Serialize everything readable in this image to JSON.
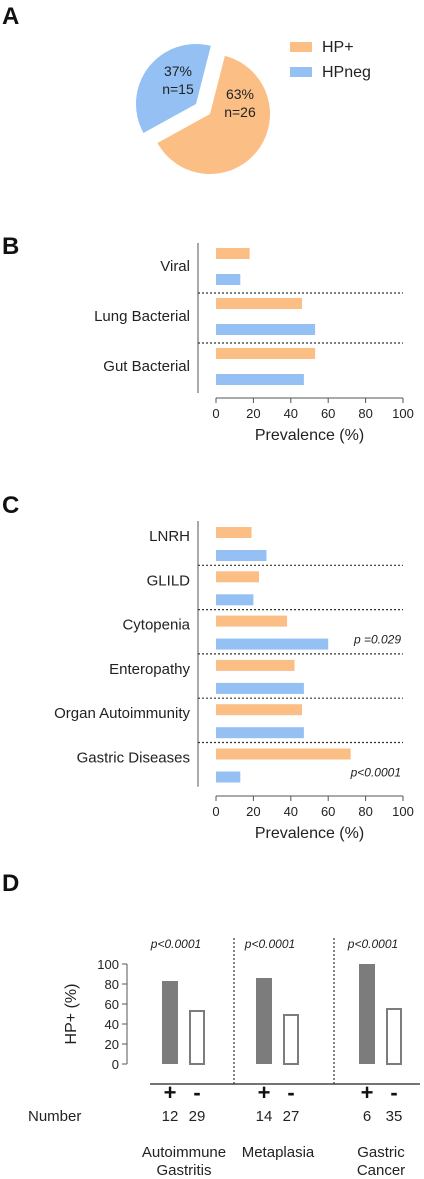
{
  "colors": {
    "hp_pos": "#fbbf86",
    "hp_neg": "#94c0f3",
    "bar_dark": "#7c7c7c",
    "axis": "#555555",
    "text": "#222222"
  },
  "chart_data": [
    {
      "panel": "A",
      "type": "pie",
      "categories": [
        "HP+",
        "HPneg"
      ],
      "values": [
        63,
        37
      ],
      "slice_labels": [
        {
          "percent": "63%",
          "n": "n=26"
        },
        {
          "percent": "37%",
          "n": "n=15"
        }
      ],
      "legend": [
        {
          "name": "HP+",
          "color": "#fbbf86"
        },
        {
          "name": "HPneg",
          "color": "#94c0f3"
        }
      ],
      "legend_position": "right"
    },
    {
      "panel": "B",
      "type": "bar",
      "orientation": "horizontal",
      "categories": [
        "Viral",
        "Lung Bacterial",
        "Gut Bacterial"
      ],
      "series": [
        {
          "name": "HP+",
          "values": [
            18,
            46,
            53
          ]
        },
        {
          "name": "HPneg",
          "values": [
            13,
            53,
            47
          ]
        }
      ],
      "xlabel": "Prevalence (%)",
      "xlim": [
        0,
        100
      ],
      "xticks": [
        "0",
        "20",
        "40",
        "60",
        "80",
        "100"
      ],
      "annotations": []
    },
    {
      "panel": "C",
      "type": "bar",
      "orientation": "horizontal",
      "categories": [
        "LNRH",
        "GLILD",
        "Cytopenia",
        "Enteropathy",
        "Organ Autoimmunity",
        "Gastric Diseases"
      ],
      "series": [
        {
          "name": "HP+",
          "values": [
            19,
            23,
            38,
            42,
            46,
            72
          ]
        },
        {
          "name": "HPneg",
          "values": [
            27,
            20,
            60,
            47,
            47,
            13
          ]
        }
      ],
      "xlabel": "Prevalence (%)",
      "xlim": [
        0,
        100
      ],
      "xticks": [
        "0",
        "20",
        "40",
        "60",
        "80",
        "100"
      ],
      "annotations": [
        {
          "category": "Cytopenia",
          "text": "p =0.029"
        },
        {
          "category": "Gastric Diseases",
          "text": "p<0.0001"
        }
      ]
    },
    {
      "panel": "D",
      "type": "bar",
      "orientation": "vertical",
      "ylabel": "HP+ (%)",
      "ylim": [
        0,
        100
      ],
      "yticks": [
        "0",
        "20",
        "40",
        "60",
        "80",
        "100"
      ],
      "row_label": "Number",
      "groups": [
        {
          "name_lines": [
            "Autoimmune",
            "Gastritis"
          ],
          "p": "p<0.0001",
          "bars": [
            {
              "sign": "+",
              "n": "12",
              "value": 83
            },
            {
              "sign": "-",
              "n": "29",
              "value": 54
            }
          ]
        },
        {
          "name_lines": [
            "Metaplasia"
          ],
          "p": "p<0.0001",
          "bars": [
            {
              "sign": "+",
              "n": "14",
              "value": 86
            },
            {
              "sign": "-",
              "n": "27",
              "value": 50
            }
          ]
        },
        {
          "name_lines": [
            "Gastric",
            "Cancer"
          ],
          "p": "p<0.0001",
          "bars": [
            {
              "sign": "+",
              "n": "6",
              "value": 100
            },
            {
              "sign": "-",
              "n": "35",
              "value": 56
            }
          ]
        }
      ]
    }
  ],
  "panel_labels": [
    "A",
    "B",
    "C",
    "D"
  ]
}
